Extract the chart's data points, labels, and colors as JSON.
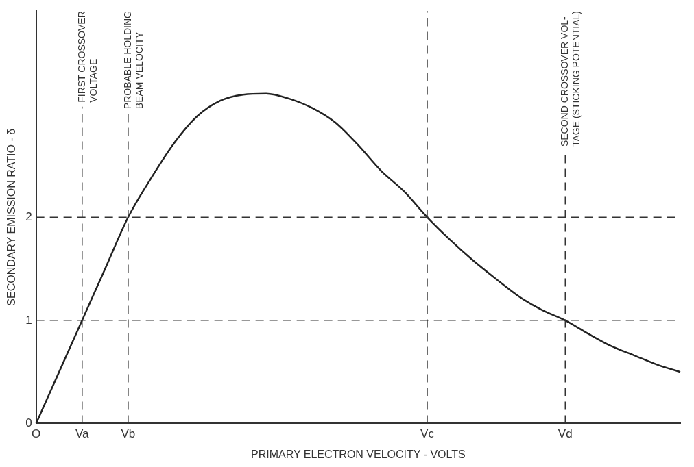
{
  "chart_data": {
    "type": "line",
    "xlabel": "PRIMARY ELECTRON VELOCITY - VOLTS",
    "ylabel": "SECONDARY EMISSION RATIO - δ",
    "categories": [
      "O",
      null,
      "Va",
      null,
      "Vb",
      null,
      null,
      null,
      null,
      null,
      null,
      null,
      null,
      null,
      null,
      null,
      null,
      "Vc",
      null,
      null,
      null,
      null,
      null,
      "Vd",
      null,
      null,
      null,
      null,
      null
    ],
    "ylim": [
      0,
      4
    ],
    "yticks": [
      0,
      1,
      2
    ],
    "series": [
      {
        "color": "#222222",
        "values": [
          0,
          0.5,
          1,
          1.5,
          2,
          2.38,
          2.72,
          2.98,
          3.13,
          3.19,
          3.2,
          3.15,
          3.06,
          2.92,
          2.7,
          2.45,
          2.25,
          2,
          1.78,
          1.58,
          1.4,
          1.23,
          1.1,
          1,
          0.87,
          0.75,
          0.66,
          0.57,
          0.5
        ]
      }
    ],
    "ref_lines": [
      {
        "axis": "x",
        "value": "Va",
        "label": "FIRST CROSSOVER\nVOLTAGE",
        "line_style": "dashed",
        "color": "#333333"
      },
      {
        "axis": "x",
        "value": "Vb",
        "label": "PROBABLE HOLDING\nBEAM VELOCITY",
        "line_style": "dashed",
        "color": "#333333"
      },
      {
        "axis": "x",
        "value": "Vc",
        "line_style": "dashed",
        "color": "#333333"
      },
      {
        "axis": "x",
        "value": "Vd",
        "label": "SECOND CROSSOVER VOL-\nTAGE (STICKING POTENTIAL)",
        "line_style": "dashed",
        "color": "#333333"
      },
      {
        "axis": "y",
        "value": 1,
        "line_style": "dashed",
        "color": "#333333"
      },
      {
        "axis": "y",
        "value": 2,
        "line_style": "dashed",
        "color": "#333333"
      }
    ],
    "grid": false,
    "legend": false,
    "marker": "none",
    "line_style": "solid"
  }
}
